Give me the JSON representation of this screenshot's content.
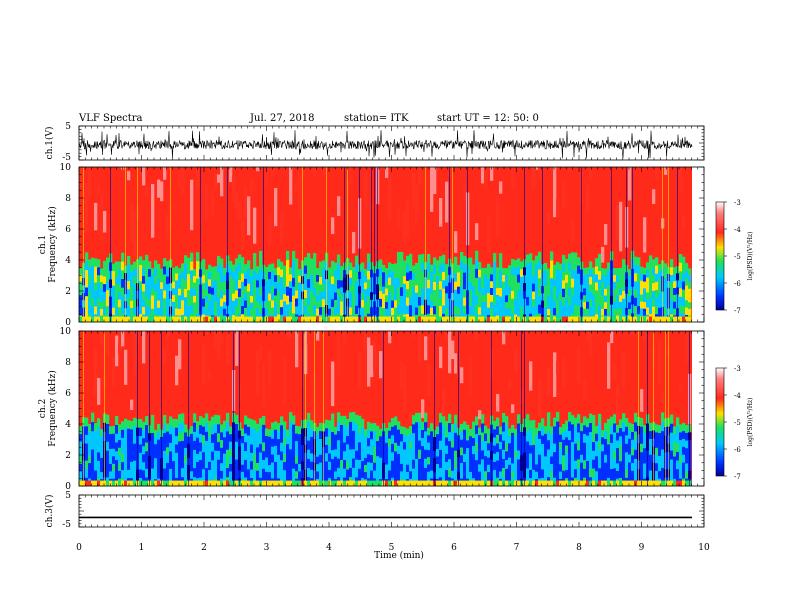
{
  "header": {
    "title": "VLF Spectra",
    "date": "Jul. 27, 2018",
    "station": "station= ITK",
    "start": "start UT =  12: 50: 0"
  },
  "chart_data": [
    {
      "type": "line",
      "panel": "ch1-waveform",
      "ylabel": "ch.1(V)",
      "yticks": [
        "5",
        "-5"
      ],
      "ylim": [
        -5,
        5
      ],
      "xlim": [
        0,
        10
      ],
      "note_series": "noisy waveform, approx. amplitude -3 to +2 V",
      "envelope_min": -3,
      "envelope_max": 2
    },
    {
      "type": "heatmap",
      "panel": "ch1-spectrogram",
      "ylabel": "ch.1\nFrequency (kHz)",
      "ylabel_lines": [
        "ch.1",
        "Frequency (kHz)"
      ],
      "yticks": [
        "0",
        "2",
        "4",
        "6",
        "8",
        "10"
      ],
      "ylim": [
        0,
        10
      ],
      "xlim": [
        0,
        9.8
      ],
      "colorbar": {
        "label": "log(PSD)(V²/Hz)",
        "ticks": [
          "-3",
          "-4",
          "-5",
          "-6",
          "-7"
        ],
        "range": [
          -7,
          -3
        ]
      },
      "band_top_khz_mean": 4.0,
      "low_band_level": -5.2,
      "high_band_level": -3.8
    },
    {
      "type": "heatmap",
      "panel": "ch2-spectrogram",
      "ylabel": "ch.2\nFrequency (kHz)",
      "ylabel_lines": [
        "ch.2",
        "Frequency (kHz)"
      ],
      "yticks": [
        "0",
        "2",
        "4",
        "6",
        "8",
        "10"
      ],
      "ylim": [
        0,
        10
      ],
      "xlim": [
        0,
        9.8
      ],
      "colorbar": {
        "label": "log(PSD)(V²/Hz)",
        "ticks": [
          "-3",
          "-4",
          "-5",
          "-6",
          "-7"
        ],
        "range": [
          -7,
          -3
        ]
      },
      "band_top_khz_mean": 4.2,
      "low_band_level": -5.8,
      "high_band_level": -3.8
    },
    {
      "type": "line",
      "panel": "ch3-waveform",
      "ylabel": "ch.3(V)",
      "yticks": [
        "5",
        "-5"
      ],
      "ylim": [
        -5,
        5
      ],
      "xlim": [
        0,
        10
      ],
      "constant_value": -2
    }
  ],
  "xaxis": {
    "label": "Time (min)",
    "ticks": [
      "0",
      "1",
      "2",
      "3",
      "4",
      "5",
      "6",
      "7",
      "8",
      "9",
      "10"
    ]
  },
  "colors": {
    "dark_red": "#8b0000",
    "red": "#ff2a1a",
    "yellow": "#ffe000",
    "green": "#20e060",
    "cyan": "#00c8ff",
    "blue": "#0030ff",
    "navy": "#000090"
  }
}
